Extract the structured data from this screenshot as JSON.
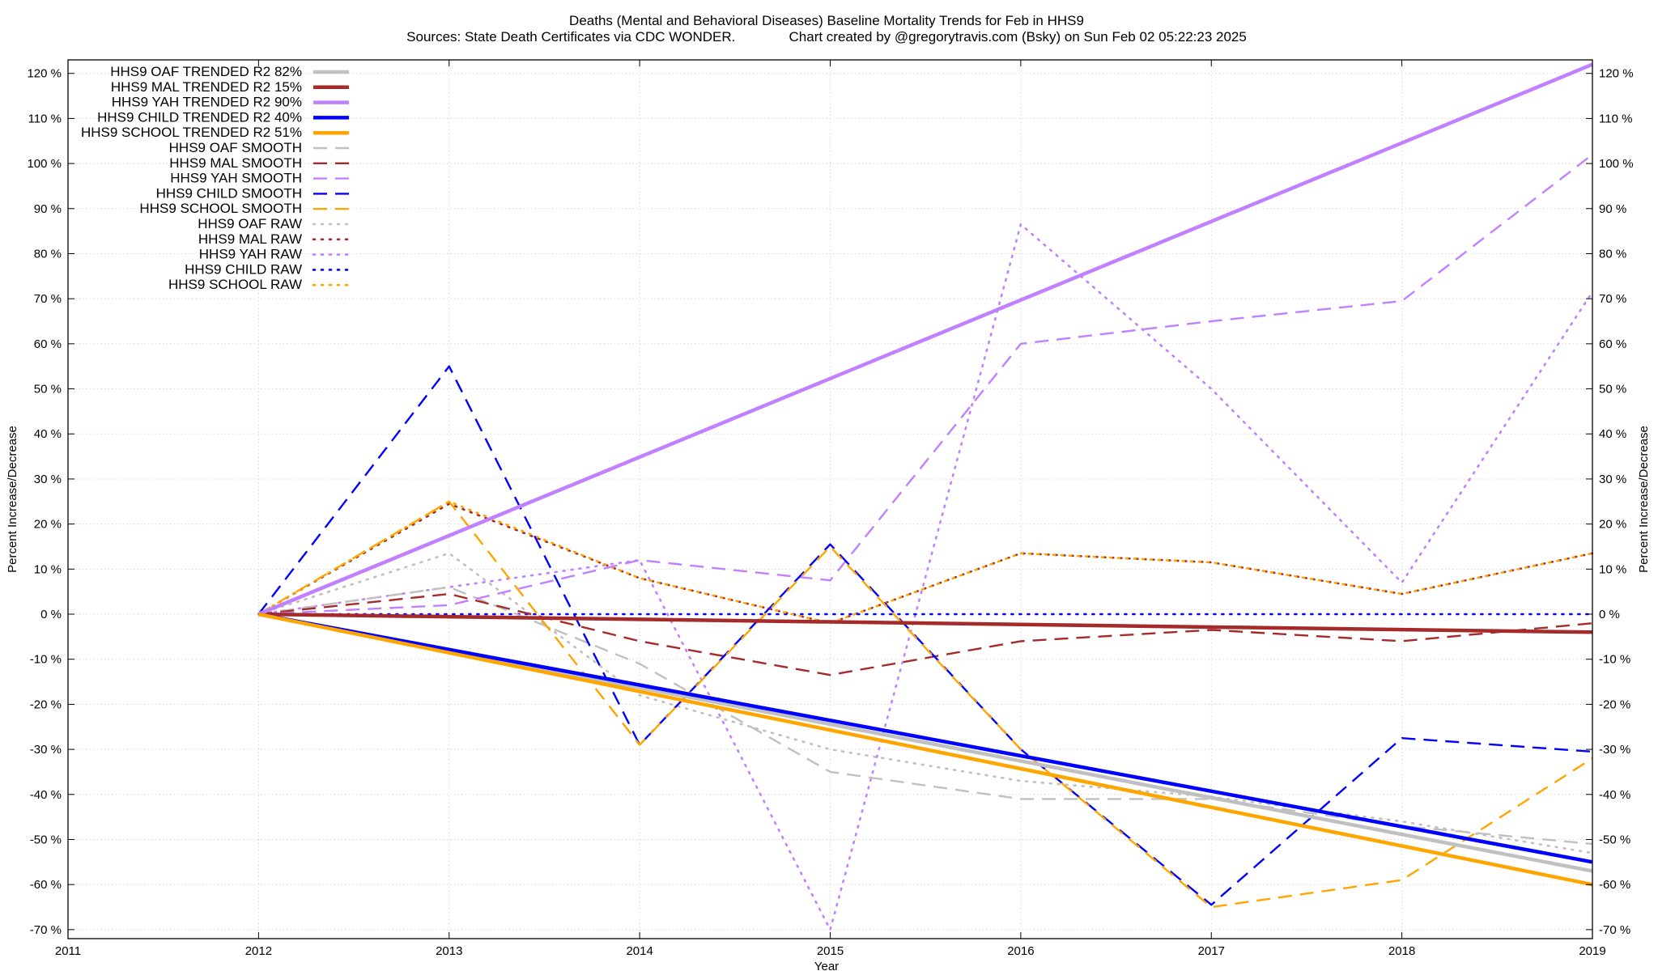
{
  "chart_data": {
    "type": "line",
    "title": "Deaths (Mental and Behavioral Diseases)  Baseline Mortality Trends for Feb in HHS9",
    "subtitle": "Sources: State Death Certificates via CDC WONDER.              Chart created by @gregorytravis.com (Bsky) on Sun Feb 02 05:22:23 2025",
    "xlabel": "Year",
    "ylabel": "Percent Increase/Decrease",
    "y2label": "Percent Increase/Decrease",
    "xlim": [
      2011,
      2019
    ],
    "ylim": [
      -72,
      123
    ],
    "x_ticks": [
      "2011",
      "2012",
      "2013",
      "2014",
      "2015",
      "2016",
      "2017",
      "2018",
      "2019"
    ],
    "y_ticks": [
      "-70 %",
      "-60 %",
      "-50 %",
      "-40 %",
      "-30 %",
      "-20 %",
      "-10 %",
      "0 %",
      "10 %",
      "20 %",
      "30 %",
      "40 %",
      "50 %",
      "60 %",
      "70 %",
      "80 %",
      "90 %",
      "100 %",
      "110 %",
      "120 %"
    ],
    "grid": true,
    "legend_position": "top-left",
    "series": [
      {
        "name": "HHS9 OAF TRENDED R2  82%",
        "color": "#c0c0c0",
        "style": "solid-thick",
        "x": [
          2012,
          2019
        ],
        "y": [
          0,
          -57
        ]
      },
      {
        "name": "HHS9 MAL TRENDED R2  15%",
        "color": "#a52a2a",
        "style": "solid-thick",
        "x": [
          2012,
          2019
        ],
        "y": [
          0,
          -4
        ]
      },
      {
        "name": "HHS9 YAH TRENDED R2  90%",
        "color": "#c080ff",
        "style": "solid-thick",
        "x": [
          2012,
          2019
        ],
        "y": [
          0,
          122
        ]
      },
      {
        "name": "HHS9 CHILD TRENDED R2  40%",
        "color": "#0000ff",
        "style": "solid-thick",
        "x": [
          2012,
          2019
        ],
        "y": [
          0,
          -55
        ]
      },
      {
        "name": "HHS9 SCHOOL TRENDED R2  51%",
        "color": "#ffa500",
        "style": "solid-thick",
        "x": [
          2012,
          2019
        ],
        "y": [
          0,
          -60
        ]
      },
      {
        "name": "HHS9 OAF SMOOTH",
        "color": "#c0c0c0",
        "style": "dashed",
        "x": [
          2012,
          2013,
          2014,
          2015,
          2016,
          2017,
          2018,
          2019
        ],
        "y": [
          0,
          6,
          -11,
          -35,
          -41,
          -41,
          -47,
          -51
        ]
      },
      {
        "name": "HHS9 MAL SMOOTH",
        "color": "#a52a2a",
        "style": "dashed",
        "x": [
          2012,
          2013,
          2014,
          2015,
          2016,
          2017,
          2018,
          2019
        ],
        "y": [
          0,
          4.5,
          -6,
          -13.5,
          -6,
          -3.5,
          -6,
          -2
        ]
      },
      {
        "name": "HHS9 YAH SMOOTH",
        "color": "#c080ff",
        "style": "dashed",
        "x": [
          2012,
          2013,
          2014,
          2015,
          2016,
          2017,
          2018,
          2019
        ],
        "y": [
          0,
          2,
          12,
          7.5,
          60,
          65,
          69.5,
          102
        ]
      },
      {
        "name": "HHS9 CHILD SMOOTH",
        "color": "#0000ff",
        "style": "dashed",
        "x": [
          2012,
          2013,
          2014,
          2015,
          2016,
          2017,
          2018,
          2019
        ],
        "y": [
          0,
          55,
          -29,
          15.5,
          -30,
          -64.5,
          -27.5,
          -30.5
        ]
      },
      {
        "name": "HHS9 SCHOOL SMOOTH",
        "color": "#ffa500",
        "style": "dashed",
        "x": [
          2012,
          2013,
          2014,
          2015,
          2016,
          2017,
          2018,
          2019
        ],
        "y": [
          0,
          25,
          -29,
          15,
          -30,
          -65,
          -59,
          -32
        ]
      },
      {
        "name": "HHS9 OAF RAW",
        "color": "#c0c0c0",
        "style": "dotted",
        "x": [
          2012,
          2013,
          2014,
          2015,
          2016,
          2017,
          2018,
          2019
        ],
        "y": [
          0,
          13.5,
          -18,
          -30,
          -37,
          -40.5,
          -46,
          -53
        ]
      },
      {
        "name": "HHS9 MAL RAW",
        "color": "#a52a2a",
        "style": "dotted",
        "x": [
          2012,
          2013,
          2014,
          2015,
          2016,
          2017,
          2018,
          2019
        ],
        "y": [
          0,
          24.5,
          8,
          -2,
          13.5,
          11.5,
          4.5,
          13.5
        ]
      },
      {
        "name": "HHS9 YAH RAW",
        "color": "#c080ff",
        "style": "dotted",
        "x": [
          2012,
          2013,
          2014,
          2015,
          2016,
          2017,
          2018,
          2019
        ],
        "y": [
          0,
          6,
          12,
          -70,
          86.5,
          50,
          7,
          71.5
        ]
      },
      {
        "name": "HHS9 CHILD RAW",
        "color": "#0000ff",
        "style": "dotted",
        "x": [
          2012,
          2013,
          2014,
          2015,
          2016,
          2017,
          2018,
          2019
        ],
        "y": [
          0,
          0,
          0,
          0,
          0,
          0,
          0,
          0
        ]
      },
      {
        "name": "HHS9 SCHOOL RAW",
        "color": "#ffa500",
        "style": "dotted",
        "x": [
          2012,
          2013,
          2014,
          2015,
          2016,
          2017,
          2018,
          2019
        ],
        "y": [
          0,
          25,
          8,
          -2,
          13.5,
          11.5,
          4.5,
          13.5
        ]
      }
    ]
  }
}
